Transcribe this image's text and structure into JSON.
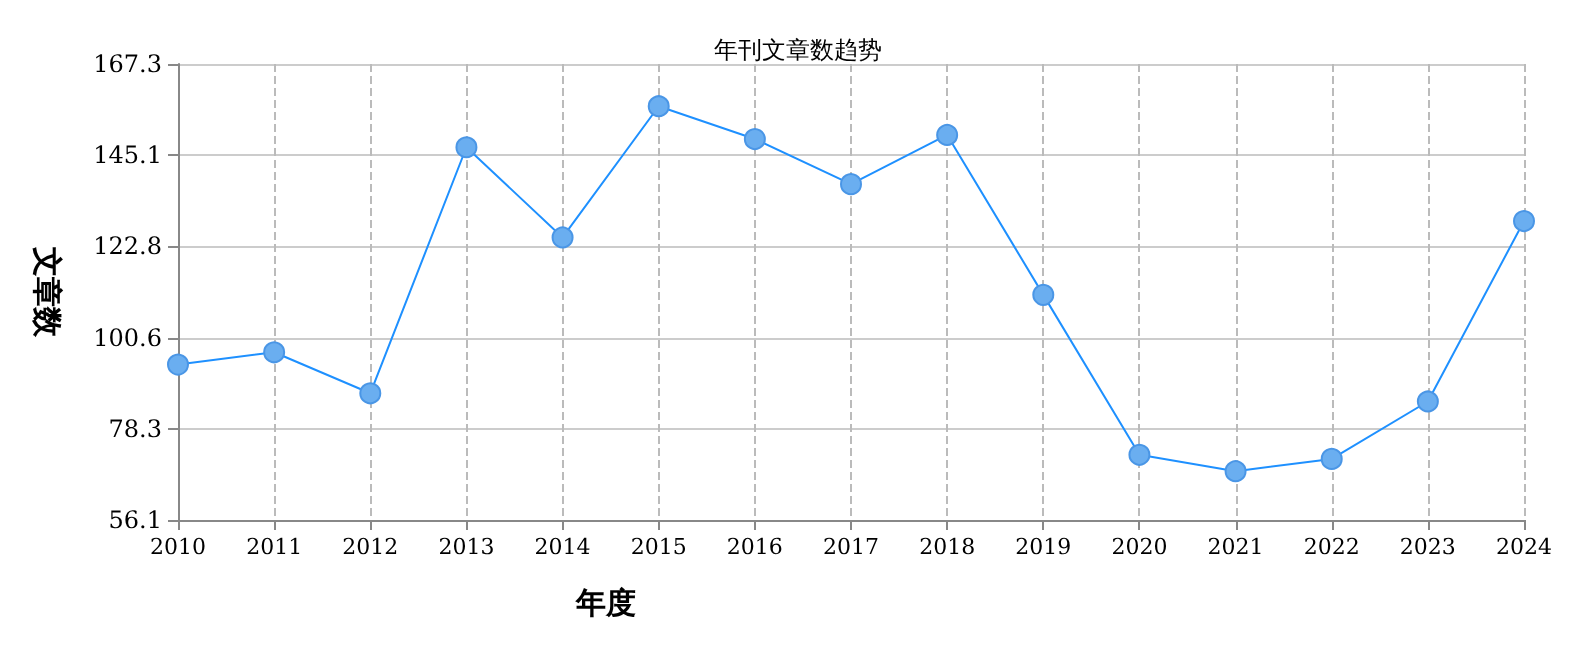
{
  "chart_data": {
    "type": "line",
    "title": "年刊文章数趋势",
    "xlabel": "年度",
    "ylabel": "文章数",
    "categories": [
      "2010",
      "2011",
      "2012",
      "2013",
      "2014",
      "2015",
      "2016",
      "2017",
      "2018",
      "2019",
      "2020",
      "2021",
      "2022",
      "2023",
      "2024"
    ],
    "series": [
      {
        "color": "#1e90ff",
        "values": [
          94,
          97,
          87,
          147,
          125,
          157,
          149,
          138,
          150,
          111,
          72,
          68,
          71,
          85,
          129
        ]
      }
    ],
    "ylim": [
      56.1,
      167.3
    ],
    "yticks": [
      56.1,
      78.3,
      100.6,
      122.8,
      145.1,
      167.3
    ],
    "grid": true,
    "marker": "circle",
    "line_style": "solid"
  }
}
